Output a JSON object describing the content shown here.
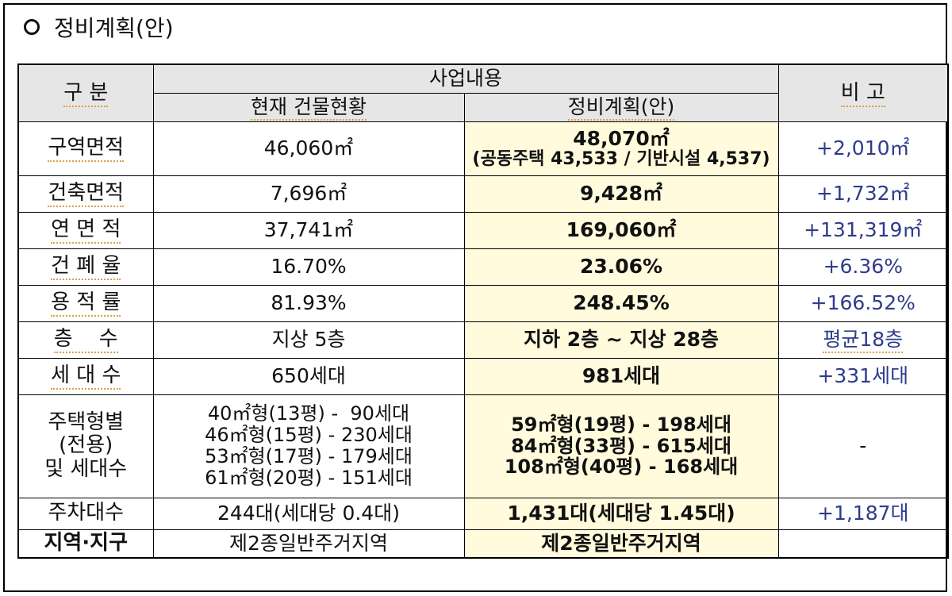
{
  "heading": "정비계획(안)",
  "table": {
    "header": {
      "category": "구  분",
      "business": "사업내용",
      "current": "현재 건물현황",
      "plan": "정비계획(안)",
      "remarks": "비 고"
    },
    "rows": [
      {
        "label": "구역면적",
        "current": "46,060㎡",
        "plan": "48,070㎡",
        "plan_detail": "(공동주택 43,533 / 기반시설 4,537)",
        "remarks": "+2,010㎡"
      },
      {
        "label": "건축면적",
        "current": "7,696㎡",
        "plan": "9,428㎡",
        "remarks": "+1,732㎡"
      },
      {
        "label": "연 면 적",
        "current": "37,741㎡",
        "plan": "169,060㎡",
        "remarks": "+131,319㎡"
      },
      {
        "label": "건 폐 율",
        "current": "16.70%",
        "plan": "23.06%",
        "remarks": "+6.36%"
      },
      {
        "label": "용 적 률",
        "current": "81.93%",
        "plan": "248.45%",
        "remarks": "+166.52%"
      },
      {
        "label": "층    수",
        "current": "지상 5층",
        "plan": "지하 2층 ~ 지상 28층",
        "remarks": "평균18층"
      },
      {
        "label": "세 대 수",
        "current": "650세대",
        "plan": "981세대",
        "remarks": "+331세대"
      }
    ],
    "housing": {
      "label_lines": [
        "주택형별",
        "(전용)",
        "및 세대수"
      ],
      "current": [
        "40㎡형(13평) -  90세대",
        "46㎡형(15평) - 230세대",
        "53㎡형(17평) - 179세대",
        "61㎡형(20평) - 151세대"
      ],
      "plan": [
        "59㎡형(19평) - 198세대",
        "84㎡형(33평) - 615세대",
        "108㎡형(40평) - 168세대"
      ],
      "remarks": "-"
    },
    "parking": {
      "label": "주차대수",
      "current": "244대(세대당 0.4대)",
      "plan": "1,431대(세대당 1.45대)",
      "remarks": "+1,187대"
    },
    "zone": {
      "label": "지역·지구",
      "current": "제2종일반주거지역",
      "plan": "제2종일반주거지역",
      "remarks": ""
    }
  }
}
